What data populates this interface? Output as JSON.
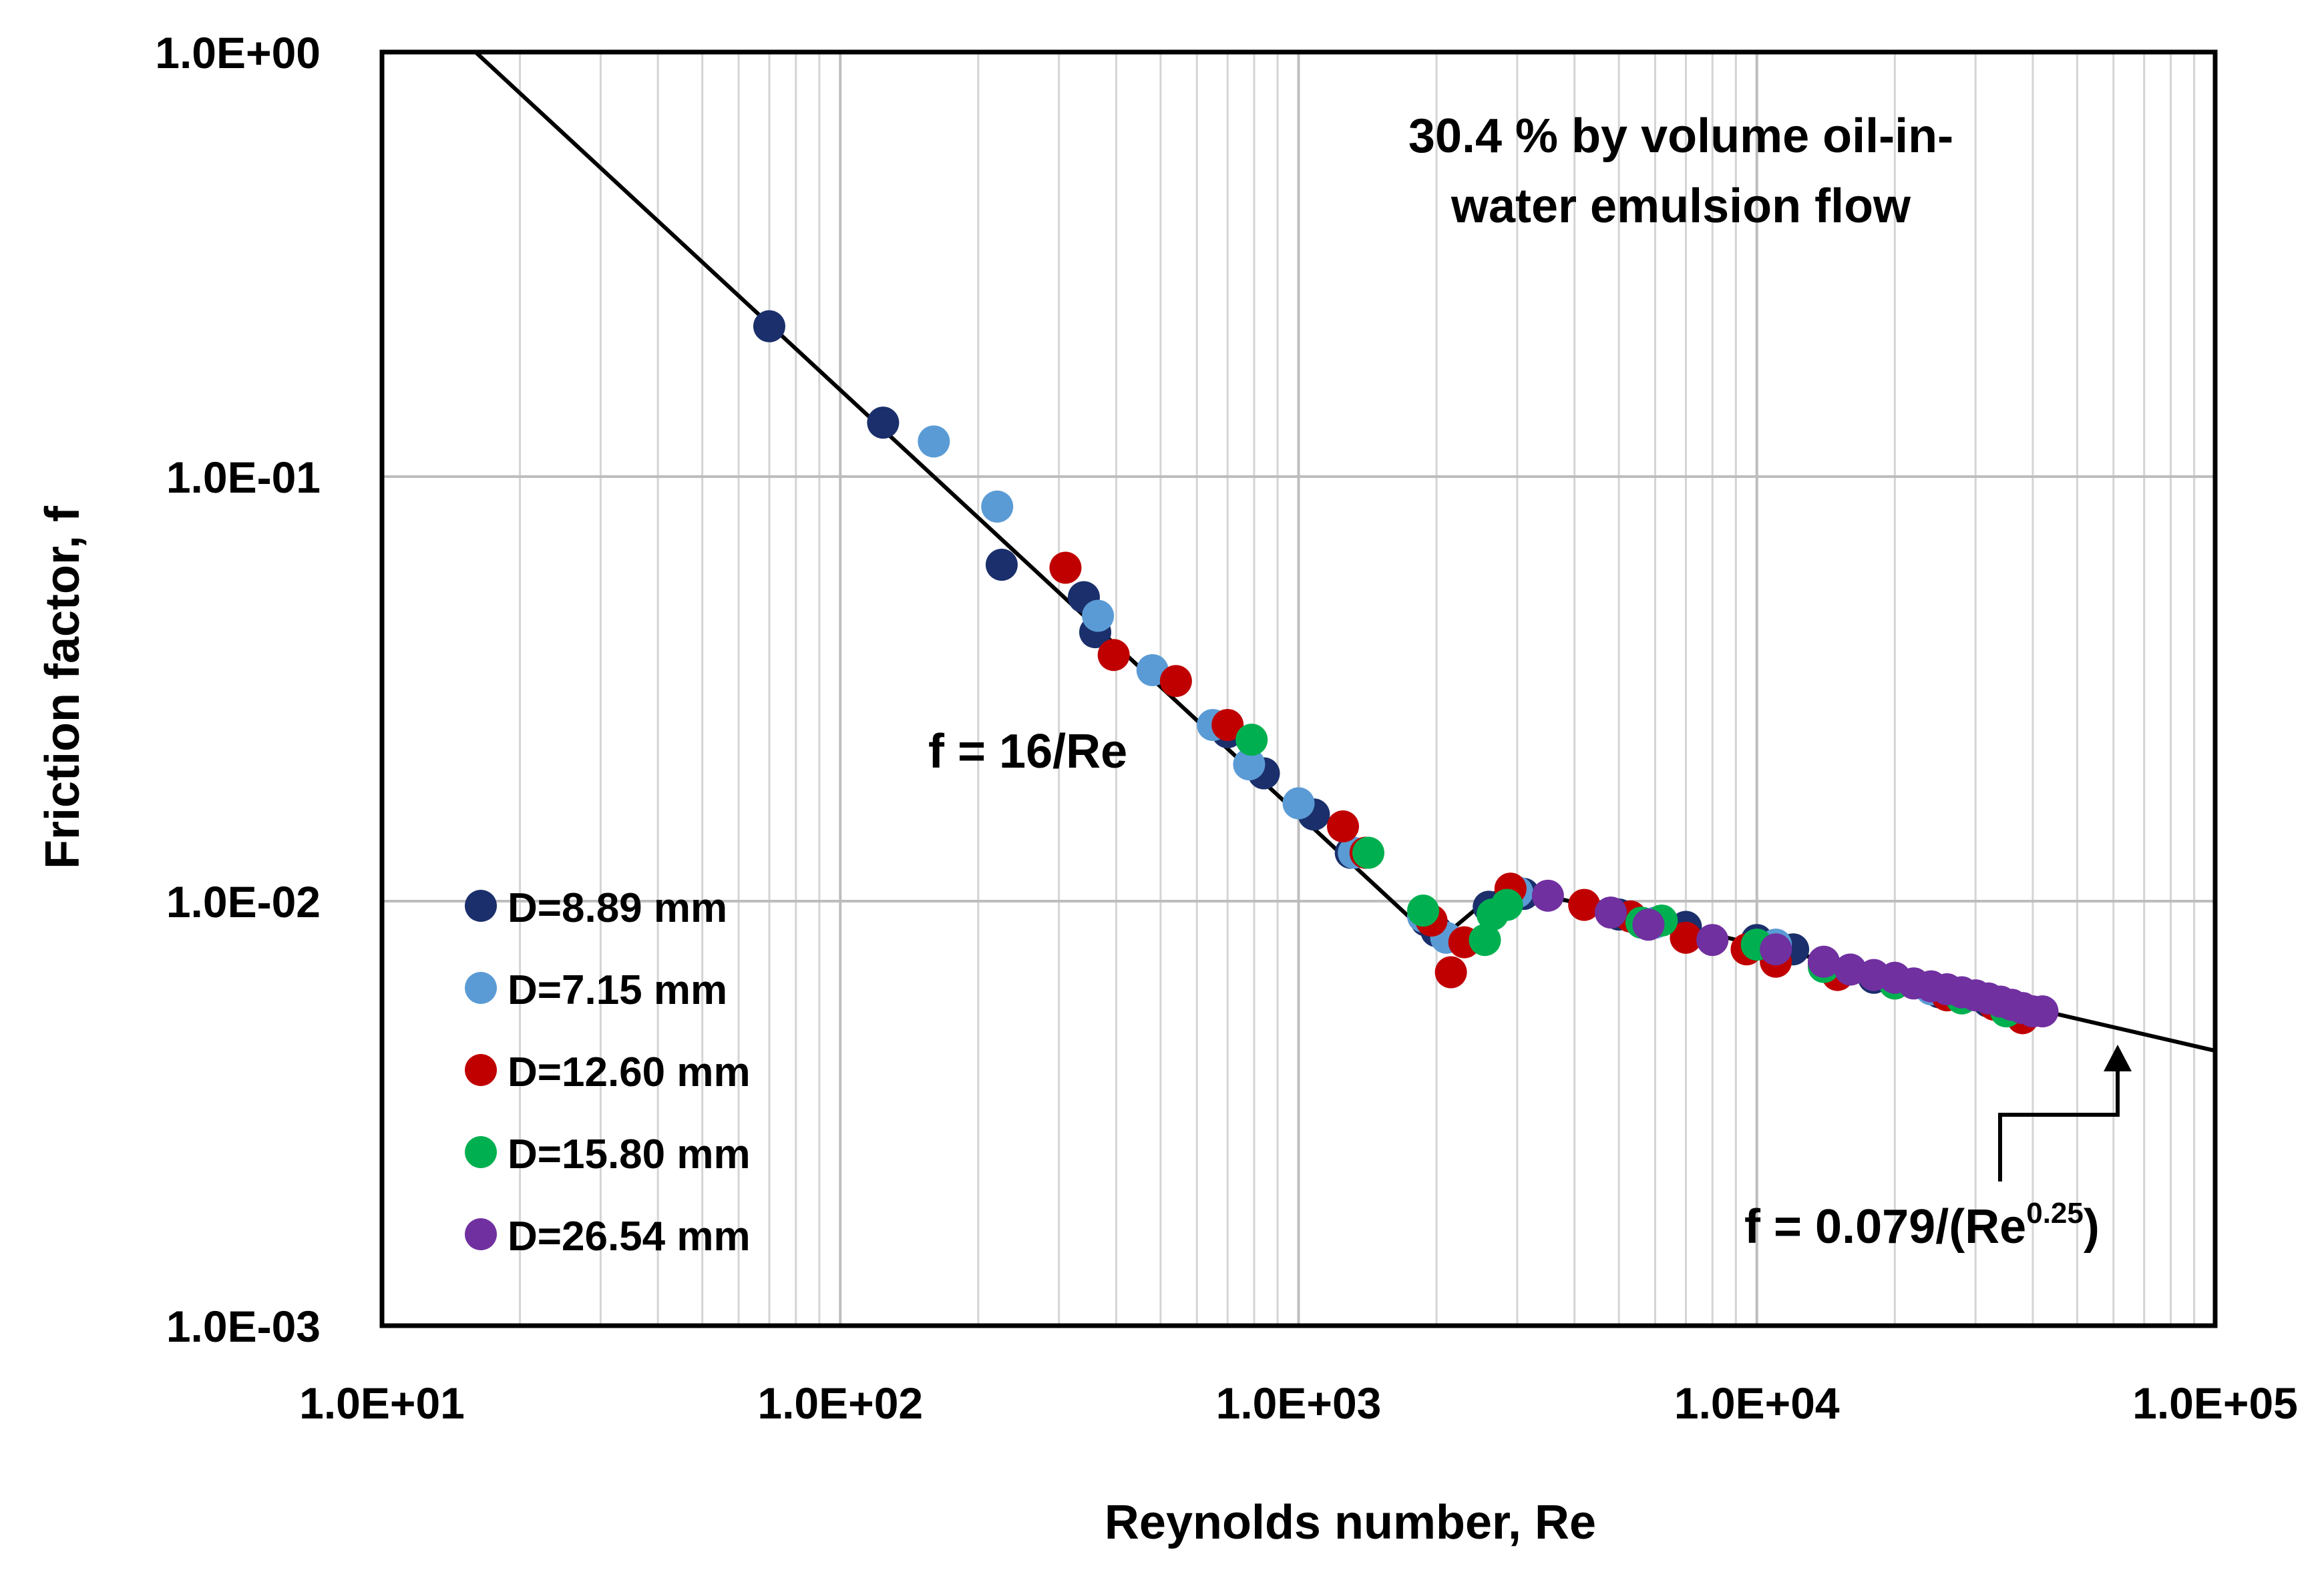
{
  "chart_data": {
    "type": "scatter",
    "title": "",
    "xlabel": "Reynolds number, Re",
    "ylabel": "Friction factor, f",
    "x_scale": "log",
    "y_scale": "log",
    "xlim": [
      10,
      100000
    ],
    "ylim": [
      0.001,
      1
    ],
    "grid": true,
    "x_ticks": [
      {
        "value": 10,
        "label": "1.0E+01"
      },
      {
        "value": 100,
        "label": "1.0E+02"
      },
      {
        "value": 1000,
        "label": "1.0E+03"
      },
      {
        "value": 10000,
        "label": "1.0E+04"
      },
      {
        "value": 100000,
        "label": "1.0E+05"
      }
    ],
    "y_ticks": [
      {
        "value": 1,
        "label": "1.0E+00"
      },
      {
        "value": 0.1,
        "label": "1.0E-01"
      },
      {
        "value": 0.01,
        "label": "1.0E-02"
      },
      {
        "value": 0.001,
        "label": "1.0E-03"
      }
    ],
    "legend_position": "lower-left",
    "annotations": {
      "title_box_line1": "30.4 % by volume oil-in-",
      "title_box_line2": "water emulsion flow",
      "laminar_label": "f = 16/Re",
      "turbulent_label_main": "f = 0.079/(Re",
      "turbulent_label_exp": "0.25",
      "turbulent_label_close": ")"
    },
    "reference_lines": [
      {
        "name": "laminar",
        "equation": "f = 16/Re",
        "x_range": [
          16,
          2000
        ]
      },
      {
        "name": "turbulent",
        "equation": "f = 0.079/(Re^0.25)",
        "x_range": [
          2800,
          100000
        ]
      }
    ],
    "series": [
      {
        "name": "D=8.89 mm",
        "color": "#1a2f6b",
        "points": [
          [
            70,
            0.226
          ],
          [
            124,
            0.134
          ],
          [
            225,
            0.062
          ],
          [
            340,
            0.052
          ],
          [
            360,
            0.043
          ],
          [
            700,
            0.025
          ],
          [
            840,
            0.02
          ],
          [
            1080,
            0.016
          ],
          [
            1300,
            0.013
          ],
          [
            1900,
            0.009
          ],
          [
            2000,
            0.0085
          ],
          [
            2600,
            0.0097
          ],
          [
            3100,
            0.0104
          ],
          [
            5000,
            0.0093
          ],
          [
            7000,
            0.0087
          ],
          [
            10000,
            0.0081
          ],
          [
            12000,
            0.0077
          ],
          [
            14000,
            0.0071
          ],
          [
            18000,
            0.0066
          ],
          [
            25000,
            0.0061
          ],
          [
            32000,
            0.0058
          ]
        ]
      },
      {
        "name": "D=7.15 mm",
        "color": "#5b9bd5",
        "points": [
          [
            160,
            0.121
          ],
          [
            220,
            0.085
          ],
          [
            365,
            0.047
          ],
          [
            480,
            0.035
          ],
          [
            650,
            0.026
          ],
          [
            780,
            0.021
          ],
          [
            1000,
            0.017
          ],
          [
            1320,
            0.013
          ],
          [
            1870,
            0.0092
          ],
          [
            2100,
            0.0082
          ],
          [
            3000,
            0.0105
          ],
          [
            6000,
            0.0089
          ],
          [
            11000,
            0.0079
          ],
          [
            16000,
            0.0069
          ],
          [
            24000,
            0.0062
          ],
          [
            34000,
            0.0057
          ]
        ]
      },
      {
        "name": "D=12.60 mm",
        "color": "#c00000",
        "points": [
          [
            310,
            0.061
          ],
          [
            395,
            0.038
          ],
          [
            540,
            0.033
          ],
          [
            700,
            0.026
          ],
          [
            1250,
            0.015
          ],
          [
            1400,
            0.013
          ],
          [
            1950,
            0.009
          ],
          [
            2150,
            0.0068
          ],
          [
            2300,
            0.008
          ],
          [
            2900,
            0.0107
          ],
          [
            4200,
            0.0098
          ],
          [
            5300,
            0.0092
          ],
          [
            7000,
            0.0082
          ],
          [
            9500,
            0.0077
          ],
          [
            11000,
            0.0072
          ],
          [
            15000,
            0.0067
          ],
          [
            20000,
            0.0064
          ],
          [
            26000,
            0.006
          ],
          [
            33000,
            0.0057
          ],
          [
            38000,
            0.0053
          ]
        ]
      },
      {
        "name": "D=15.80 mm",
        "color": "#00b050",
        "points": [
          [
            790,
            0.024
          ],
          [
            1420,
            0.013
          ],
          [
            1870,
            0.0095
          ],
          [
            2550,
            0.0081
          ],
          [
            2650,
            0.0093
          ],
          [
            2850,
            0.0098
          ],
          [
            5600,
            0.0089
          ],
          [
            6200,
            0.009
          ],
          [
            10000,
            0.0079
          ],
          [
            14000,
            0.007
          ],
          [
            20000,
            0.0064
          ],
          [
            28000,
            0.0059
          ],
          [
            35000,
            0.0055
          ]
        ]
      },
      {
        "name": "D=26.54 mm",
        "color": "#7030a0",
        "points": [
          [
            3500,
            0.0103
          ],
          [
            4800,
            0.0094
          ],
          [
            5800,
            0.0088
          ],
          [
            8000,
            0.0081
          ],
          [
            11000,
            0.0077
          ],
          [
            14000,
            0.0072
          ],
          [
            16000,
            0.0069
          ],
          [
            18000,
            0.0067
          ],
          [
            20000,
            0.0066
          ],
          [
            22000,
            0.0064
          ],
          [
            24000,
            0.0063
          ],
          [
            26000,
            0.0062
          ],
          [
            28000,
            0.0061
          ],
          [
            30000,
            0.006
          ],
          [
            32000,
            0.0059
          ],
          [
            34000,
            0.0058
          ],
          [
            36000,
            0.0057
          ],
          [
            38000,
            0.0056
          ],
          [
            40000,
            0.0055
          ],
          [
            42000,
            0.0055
          ]
        ]
      }
    ]
  }
}
